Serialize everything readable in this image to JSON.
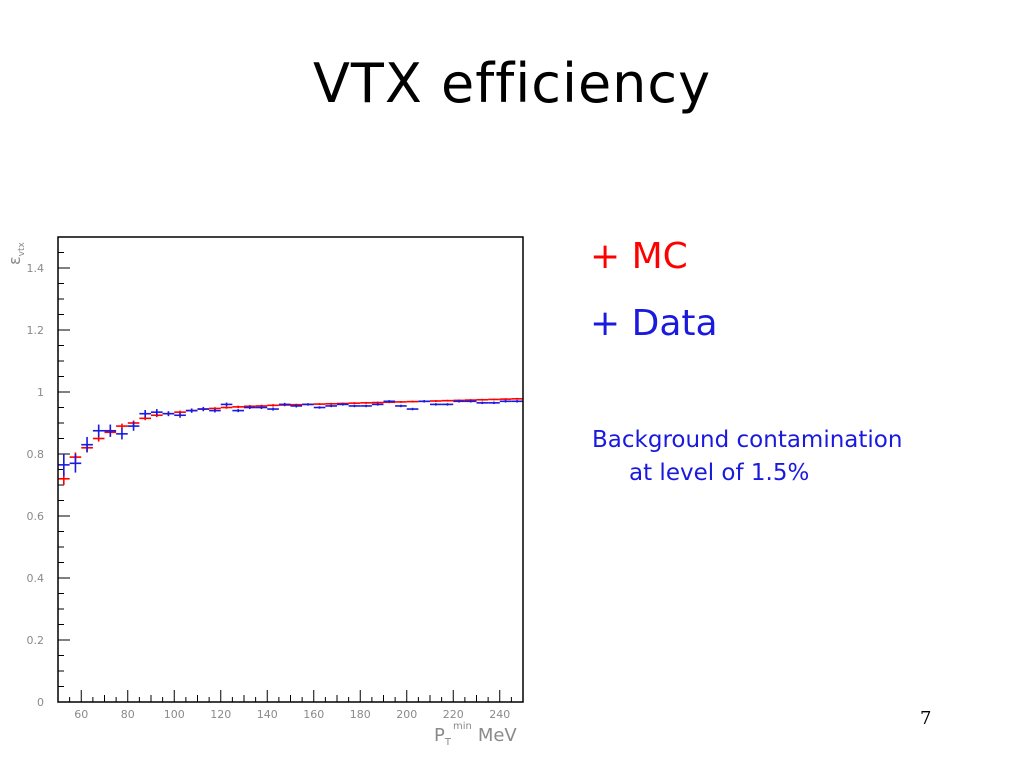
{
  "slide": {
    "title": "VTX efficiency",
    "page_number": "7"
  },
  "legend": {
    "mc": {
      "marker": "+",
      "label": "MC",
      "color": "#ff0000"
    },
    "data": {
      "marker": "+",
      "label": "Data",
      "color": "#1a1adf"
    }
  },
  "note": {
    "line1": "Background contamination",
    "line2": "at level of 1.5%",
    "color": "#1a1adf"
  },
  "chart_data": {
    "type": "scatter",
    "ylabel": "ε_vtx",
    "xlabel_main": "P",
    "xlabel_sub": "T",
    "xlabel_sup": "min",
    "xlabel_unit": "MeV",
    "xlim": [
      50,
      250
    ],
    "ylim": [
      0,
      1.5
    ],
    "x_ticks": [
      60,
      80,
      100,
      120,
      140,
      160,
      180,
      200,
      220,
      240
    ],
    "y_ticks": [
      0,
      0.2,
      0.4,
      0.6,
      0.8,
      1,
      1.2,
      1.4
    ],
    "y_tick_labels": [
      "0",
      "0.2",
      "0.4",
      "0.6",
      "0.8",
      "1",
      "1.2",
      "1.4"
    ],
    "grid": false,
    "x_bin_width": 5,
    "series": [
      {
        "name": "MC",
        "color": "#ff0000",
        "x": [
          52.5,
          57.5,
          62.5,
          67.5,
          72.5,
          77.5,
          82.5,
          87.5,
          92.5,
          97.5,
          102.5,
          107.5,
          112.5,
          117.5,
          122.5,
          127.5,
          132.5,
          137.5,
          142.5,
          147.5,
          152.5,
          157.5,
          162.5,
          167.5,
          172.5,
          177.5,
          182.5,
          187.5,
          192.5,
          197.5,
          202.5,
          207.5,
          212.5,
          217.5,
          222.5,
          227.5,
          232.5,
          237.5,
          242.5,
          247.5
        ],
        "y": [
          0.72,
          0.79,
          0.82,
          0.85,
          0.87,
          0.89,
          0.9,
          0.915,
          0.925,
          0.93,
          0.935,
          0.94,
          0.945,
          0.947,
          0.95,
          0.952,
          0.954,
          0.955,
          0.957,
          0.958,
          0.959,
          0.96,
          0.961,
          0.962,
          0.963,
          0.964,
          0.965,
          0.966,
          0.967,
          0.968,
          0.969,
          0.97,
          0.971,
          0.972,
          0.973,
          0.974,
          0.975,
          0.976,
          0.977,
          0.978
        ],
        "yerr": [
          0.02,
          0.015,
          0.012,
          0.01,
          0.01,
          0.008,
          0.008,
          0.006,
          0.006,
          0.005,
          0.005,
          0.005,
          0.004,
          0.004,
          0.004,
          0.004,
          0.004,
          0.004,
          0.004,
          0.004,
          0.003,
          0.003,
          0.003,
          0.003,
          0.003,
          0.003,
          0.003,
          0.003,
          0.003,
          0.003,
          0.003,
          0.003,
          0.003,
          0.003,
          0.003,
          0.003,
          0.003,
          0.003,
          0.003,
          0.003
        ]
      },
      {
        "name": "Data",
        "color": "#1a1adf",
        "x": [
          52.5,
          57.5,
          62.5,
          67.5,
          72.5,
          77.5,
          82.5,
          87.5,
          92.5,
          97.5,
          102.5,
          107.5,
          112.5,
          117.5,
          122.5,
          127.5,
          132.5,
          137.5,
          142.5,
          147.5,
          152.5,
          157.5,
          162.5,
          167.5,
          172.5,
          177.5,
          182.5,
          187.5,
          192.5,
          197.5,
          202.5,
          207.5,
          212.5,
          217.5,
          222.5,
          227.5,
          232.5,
          237.5,
          242.5,
          247.5
        ],
        "y": [
          0.765,
          0.77,
          0.83,
          0.875,
          0.875,
          0.865,
          0.89,
          0.93,
          0.935,
          0.93,
          0.925,
          0.94,
          0.945,
          0.94,
          0.96,
          0.94,
          0.95,
          0.95,
          0.945,
          0.96,
          0.955,
          0.96,
          0.95,
          0.955,
          0.96,
          0.955,
          0.955,
          0.96,
          0.97,
          0.955,
          0.945,
          0.97,
          0.96,
          0.96,
          0.97,
          0.97,
          0.965,
          0.965,
          0.97,
          0.97
        ],
        "yerr": [
          0.035,
          0.03,
          0.025,
          0.02,
          0.02,
          0.018,
          0.015,
          0.012,
          0.01,
          0.008,
          0.008,
          0.007,
          0.007,
          0.006,
          0.006,
          0.005,
          0.005,
          0.005,
          0.005,
          0.005,
          0.005,
          0.004,
          0.004,
          0.004,
          0.004,
          0.004,
          0.004,
          0.004,
          0.004,
          0.004,
          0.004,
          0.004,
          0.004,
          0.004,
          0.004,
          0.004,
          0.004,
          0.004,
          0.004,
          0.004
        ]
      }
    ]
  }
}
